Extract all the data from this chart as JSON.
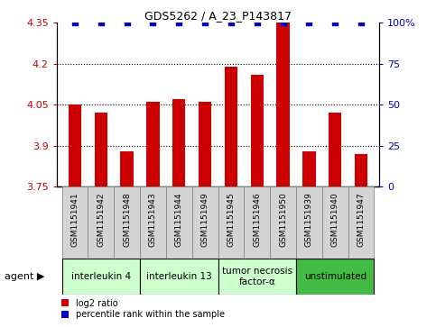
{
  "title": "GDS5262 / A_23_P143817",
  "samples": [
    "GSM1151941",
    "GSM1151942",
    "GSM1151948",
    "GSM1151943",
    "GSM1151944",
    "GSM1151949",
    "GSM1151945",
    "GSM1151946",
    "GSM1151950",
    "GSM1151939",
    "GSM1151940",
    "GSM1151947"
  ],
  "log2_values": [
    4.05,
    4.02,
    3.88,
    4.06,
    4.07,
    4.06,
    4.19,
    4.16,
    4.35,
    3.88,
    4.02,
    3.87
  ],
  "percentile_values": [
    100,
    100,
    100,
    100,
    100,
    100,
    100,
    100,
    100,
    100,
    100,
    100
  ],
  "bar_color": "#cc0000",
  "dot_color": "#0000cc",
  "ylim_left": [
    3.75,
    4.35
  ],
  "ylim_right": [
    0,
    100
  ],
  "yticks_left": [
    3.75,
    3.9,
    4.05,
    4.2,
    4.35
  ],
  "yticks_right": [
    0,
    25,
    50,
    75,
    100
  ],
  "ytick_labels_left": [
    "3.75",
    "3.9",
    "4.05",
    "4.2",
    "4.35"
  ],
  "ytick_labels_right": [
    "0",
    "25",
    "50",
    "75",
    "100%"
  ],
  "agent_groups": [
    {
      "label": "interleukin 4",
      "indices": [
        0,
        1,
        2
      ],
      "color": "#ccffcc"
    },
    {
      "label": "interleukin 13",
      "indices": [
        3,
        4,
        5
      ],
      "color": "#ccffcc"
    },
    {
      "label": "tumor necrosis\nfactor-α",
      "indices": [
        6,
        7,
        8
      ],
      "color": "#ccffcc"
    },
    {
      "label": "unstimulated",
      "indices": [
        9,
        10,
        11
      ],
      "color": "#44bb44"
    }
  ],
  "legend_items": [
    {
      "label": "log2 ratio",
      "color": "#cc0000"
    },
    {
      "label": "percentile rank within the sample",
      "color": "#0000cc"
    }
  ],
  "agent_label": "agent",
  "background_color": "#ffffff",
  "bar_width": 0.5,
  "sample_box_color": "#d4d4d4",
  "sample_box_edge": "#888888"
}
